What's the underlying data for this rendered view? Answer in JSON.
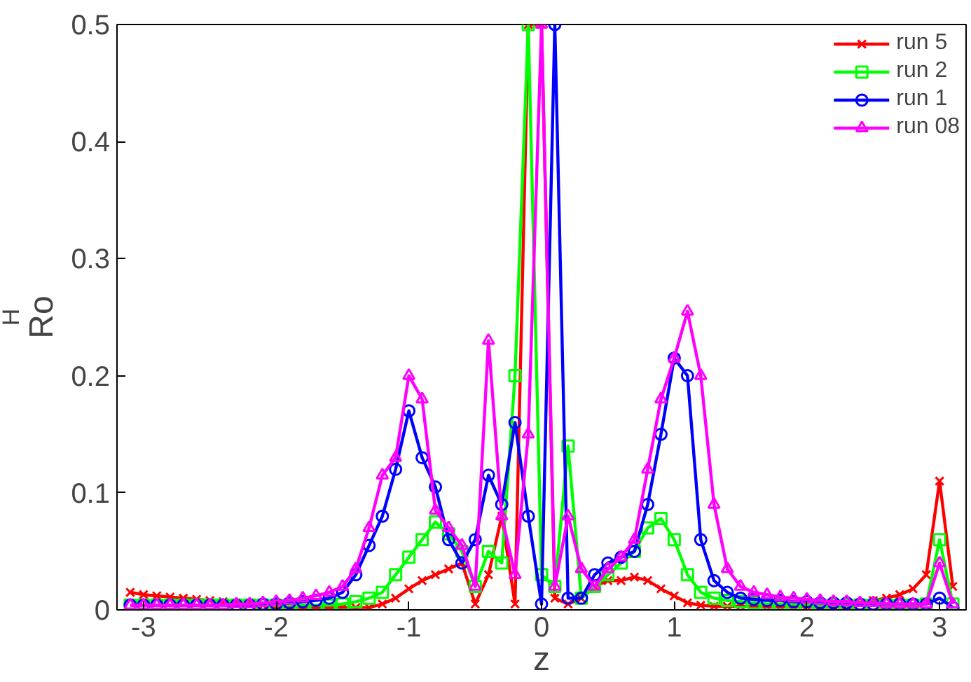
{
  "chart_data": {
    "type": "line",
    "xlabel": "z",
    "ylabel": "Ro$^{H}$",
    "x": [
      -3.1,
      -3.0,
      -2.9,
      -2.8,
      -2.7,
      -2.6,
      -2.5,
      -2.4,
      -2.3,
      -2.2,
      -2.1,
      -2.0,
      -1.9,
      -1.8,
      -1.7,
      -1.6,
      -1.5,
      -1.4,
      -1.3,
      -1.2,
      -1.1,
      -1.0,
      -0.9,
      -0.8,
      -0.7,
      -0.6,
      -0.5,
      -0.4,
      -0.3,
      -0.2,
      -0.1,
      0.0,
      0.1,
      0.2,
      0.3,
      0.4,
      0.5,
      0.6,
      0.7,
      0.8,
      0.9,
      1.0,
      1.1,
      1.2,
      1.3,
      1.4,
      1.5,
      1.6,
      1.7,
      1.8,
      1.9,
      2.0,
      2.1,
      2.2,
      2.3,
      2.4,
      2.5,
      2.6,
      2.7,
      2.8,
      2.9,
      3.0,
      3.1
    ],
    "series": [
      {
        "name": "run 5",
        "color": "#ff0000",
        "marker": "cross",
        "values": [
          0.015,
          0.013,
          0.012,
          0.011,
          0.01,
          0.009,
          0.008,
          0.007,
          0.006,
          0.006,
          0.004,
          0.003,
          0.002,
          0.002,
          0.002,
          0.002,
          0.002,
          0.002,
          0.002,
          0.005,
          0.01,
          0.018,
          0.025,
          0.03,
          0.035,
          0.04,
          0.005,
          0.03,
          0.08,
          0.005,
          0.5,
          0.5,
          0.01,
          0.005,
          0.01,
          0.02,
          0.025,
          0.025,
          0.028,
          0.025,
          0.018,
          0.012,
          0.006,
          0.004,
          0.003,
          0.003,
          0.003,
          0.003,
          0.003,
          0.003,
          0.003,
          0.003,
          0.003,
          0.003,
          0.004,
          0.006,
          0.008,
          0.01,
          0.013,
          0.018,
          0.03,
          0.11,
          0.02
        ]
      },
      {
        "name": "run 2",
        "color": "#00ff00",
        "marker": "square",
        "values": [
          0.004,
          0.004,
          0.004,
          0.004,
          0.004,
          0.004,
          0.004,
          0.004,
          0.004,
          0.004,
          0.004,
          0.004,
          0.004,
          0.004,
          0.004,
          0.004,
          0.005,
          0.007,
          0.01,
          0.015,
          0.03,
          0.045,
          0.06,
          0.075,
          0.065,
          0.05,
          0.02,
          0.05,
          0.04,
          0.2,
          0.5,
          0.03,
          0.02,
          0.14,
          0.01,
          0.02,
          0.03,
          0.04,
          0.05,
          0.07,
          0.078,
          0.06,
          0.03,
          0.015,
          0.01,
          0.008,
          0.007,
          0.006,
          0.005,
          0.005,
          0.005,
          0.004,
          0.004,
          0.004,
          0.004,
          0.004,
          0.004,
          0.004,
          0.004,
          0.004,
          0.005,
          0.06,
          0.005
        ]
      },
      {
        "name": "run 1",
        "color": "#0000ff",
        "marker": "circle",
        "values": [
          0.004,
          0.004,
          0.004,
          0.004,
          0.004,
          0.004,
          0.004,
          0.004,
          0.004,
          0.004,
          0.005,
          0.005,
          0.006,
          0.007,
          0.008,
          0.01,
          0.015,
          0.03,
          0.055,
          0.08,
          0.12,
          0.17,
          0.13,
          0.105,
          0.06,
          0.04,
          0.06,
          0.115,
          0.09,
          0.16,
          0.08,
          0.005,
          0.5,
          0.01,
          0.01,
          0.03,
          0.04,
          0.045,
          0.05,
          0.09,
          0.15,
          0.215,
          0.2,
          0.06,
          0.025,
          0.015,
          0.01,
          0.009,
          0.008,
          0.008,
          0.007,
          0.007,
          0.006,
          0.006,
          0.006,
          0.005,
          0.005,
          0.005,
          0.005,
          0.005,
          0.005,
          0.01,
          0.002
        ]
      },
      {
        "name": "run 08",
        "color": "#ff00ff",
        "marker": "triangle",
        "values": [
          0.004,
          0.004,
          0.004,
          0.004,
          0.004,
          0.004,
          0.004,
          0.004,
          0.005,
          0.005,
          0.006,
          0.007,
          0.008,
          0.01,
          0.012,
          0.015,
          0.02,
          0.035,
          0.07,
          0.115,
          0.13,
          0.2,
          0.18,
          0.085,
          0.07,
          0.055,
          0.02,
          0.23,
          0.08,
          0.03,
          0.15,
          0.5,
          0.02,
          0.08,
          0.035,
          0.02,
          0.035,
          0.045,
          0.06,
          0.12,
          0.18,
          0.215,
          0.255,
          0.2,
          0.09,
          0.035,
          0.02,
          0.015,
          0.013,
          0.011,
          0.01,
          0.009,
          0.008,
          0.007,
          0.007,
          0.006,
          0.006,
          0.005,
          0.005,
          0.005,
          0.005,
          0.04,
          0.005
        ]
      }
    ],
    "xlim": [
      -3.2,
      3.2
    ],
    "ylim": [
      0,
      0.5
    ],
    "xticks": [
      -3,
      -2,
      -1,
      0,
      1,
      2,
      3
    ],
    "yticks": [
      0,
      0.1,
      0.2,
      0.3,
      0.4,
      0.5
    ],
    "grid": false,
    "legend": "top right",
    "line_style": "solid"
  }
}
